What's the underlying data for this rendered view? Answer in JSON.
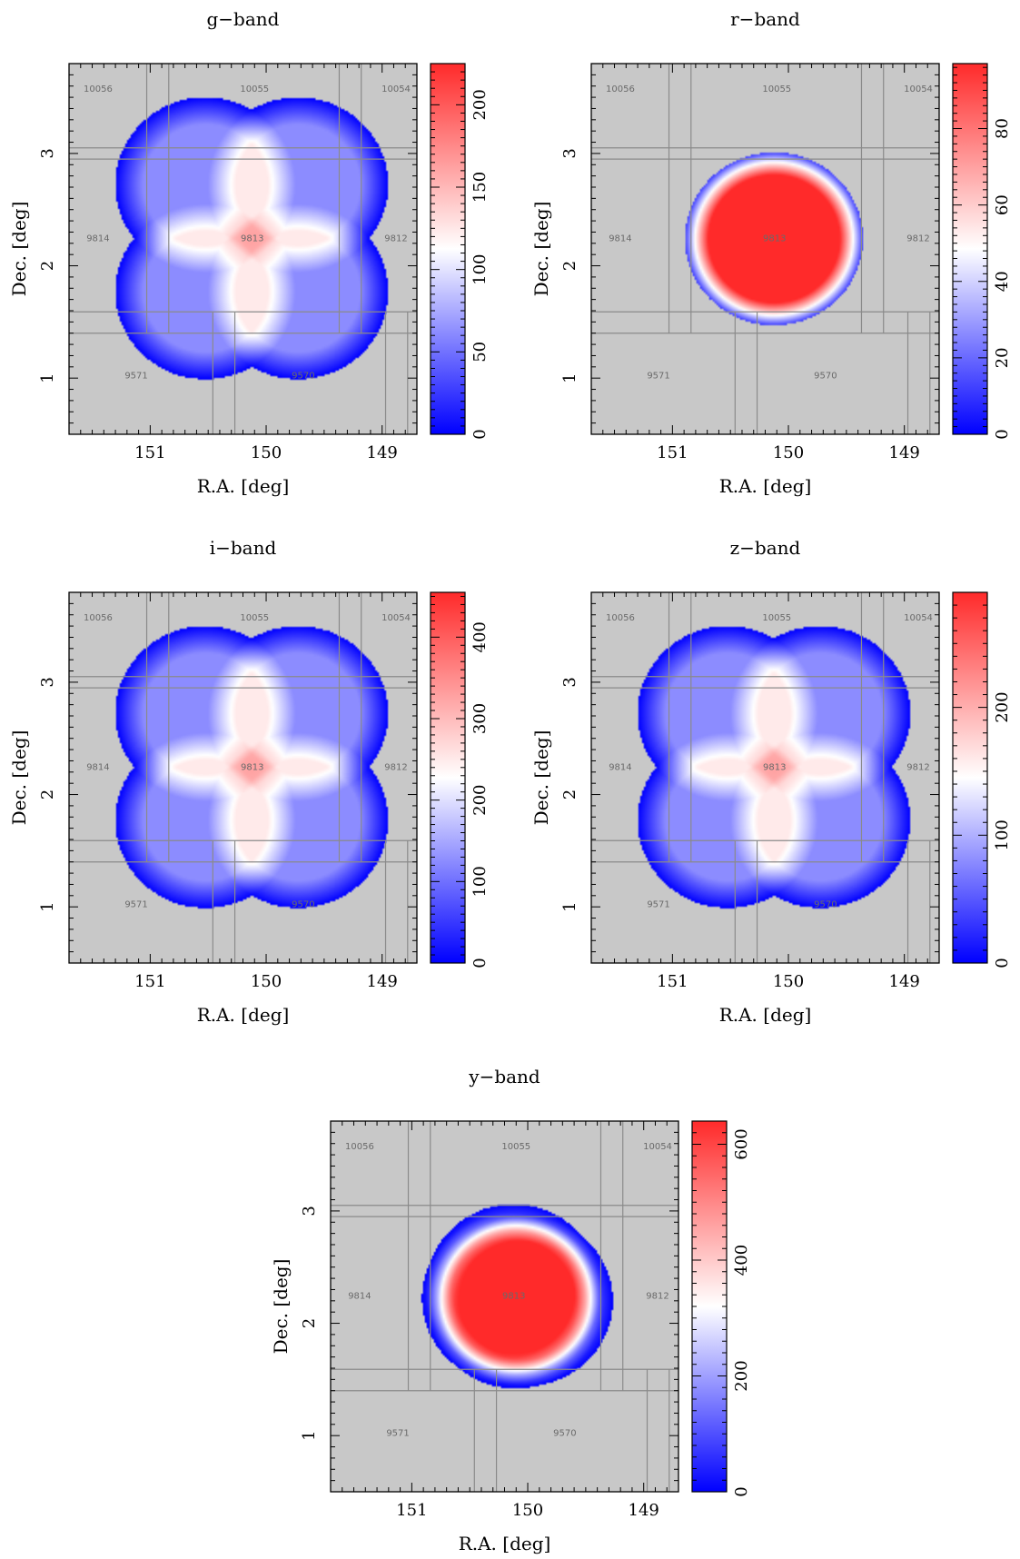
{
  "figure": {
    "panel_count": 5
  },
  "chart_data": [
    {
      "type": "heatmap",
      "title": "g−band",
      "xlabel": "R.A. [deg]",
      "ylabel": "Dec. [deg]",
      "xlim": [
        151.7,
        148.7
      ],
      "ylim": [
        0.5,
        3.8
      ],
      "xticks": [
        "151",
        "150",
        "149"
      ],
      "yticks": [
        "1",
        "2",
        "3"
      ],
      "colorbar": {
        "range": [
          0,
          225
        ],
        "ticks": [
          "0",
          "50",
          "100",
          "150",
          "200"
        ],
        "colors": [
          "#0000ff",
          "#ffffff",
          "#ff2a2a"
        ]
      },
      "pattern": "four-lobes",
      "tracts": [
        "10056",
        "10055",
        "10054",
        "9814",
        "9813",
        "9812",
        "9571",
        "9570"
      ],
      "background_color": "#c8c8c8"
    },
    {
      "type": "heatmap",
      "title": "r−band",
      "xlabel": "R.A. [deg]",
      "ylabel": "Dec. [deg]",
      "xlim": [
        151.7,
        148.7
      ],
      "ylim": [
        0.5,
        3.8
      ],
      "xticks": [
        "151",
        "150",
        "149"
      ],
      "yticks": [
        "1",
        "2",
        "3"
      ],
      "colorbar": {
        "range": [
          0,
          97
        ],
        "ticks": [
          "0",
          "20",
          "40",
          "60",
          "80"
        ],
        "colors": [
          "#0000ff",
          "#ffffff",
          "#ff2a2a"
        ]
      },
      "pattern": "single-disk",
      "tracts": [
        "10056",
        "10055",
        "10054",
        "9814",
        "9813",
        "9812",
        "9571",
        "9570"
      ],
      "background_color": "#c8c8c8"
    },
    {
      "type": "heatmap",
      "title": "i−band",
      "xlabel": "R.A. [deg]",
      "ylabel": "Dec. [deg]",
      "xlim": [
        151.7,
        148.7
      ],
      "ylim": [
        0.5,
        3.8
      ],
      "xticks": [
        "151",
        "150",
        "149"
      ],
      "yticks": [
        "1",
        "2",
        "3"
      ],
      "colorbar": {
        "range": [
          0,
          455
        ],
        "ticks": [
          "0",
          "100",
          "200",
          "300",
          "400"
        ],
        "colors": [
          "#0000ff",
          "#ffffff",
          "#ff2a2a"
        ]
      },
      "pattern": "four-lobes",
      "tracts": [
        "10056",
        "10055",
        "10054",
        "9814",
        "9813",
        "9812",
        "9571",
        "9570"
      ],
      "background_color": "#c8c8c8"
    },
    {
      "type": "heatmap",
      "title": "z−band",
      "xlabel": "R.A. [deg]",
      "ylabel": "Dec. [deg]",
      "xlim": [
        151.7,
        148.7
      ],
      "ylim": [
        0.5,
        3.8
      ],
      "xticks": [
        "151",
        "150",
        "149"
      ],
      "yticks": [
        "1",
        "2",
        "3"
      ],
      "colorbar": {
        "range": [
          0,
          290
        ],
        "ticks": [
          "0",
          "100",
          "200"
        ],
        "colors": [
          "#0000ff",
          "#ffffff",
          "#ff2a2a"
        ]
      },
      "pattern": "four-lobes",
      "tracts": [
        "10056",
        "10055",
        "10054",
        "9814",
        "9813",
        "9812",
        "9571",
        "9570"
      ],
      "background_color": "#c8c8c8"
    },
    {
      "type": "heatmap",
      "title": "y−band",
      "xlabel": "R.A. [deg]",
      "ylabel": "Dec. [deg]",
      "xlim": [
        151.7,
        148.7
      ],
      "ylim": [
        0.5,
        3.8
      ],
      "xticks": [
        "151",
        "150",
        "149"
      ],
      "yticks": [
        "1",
        "2",
        "3"
      ],
      "colorbar": {
        "range": [
          0,
          640
        ],
        "ticks": [
          "0",
          "200",
          "400",
          "600"
        ],
        "colors": [
          "#0000ff",
          "#ffffff",
          "#ff2a2a"
        ]
      },
      "pattern": "dither-disk",
      "tracts": [
        "10056",
        "10055",
        "10054",
        "9814",
        "9813",
        "9812",
        "9571",
        "9570"
      ],
      "background_color": "#c8c8c8"
    }
  ]
}
